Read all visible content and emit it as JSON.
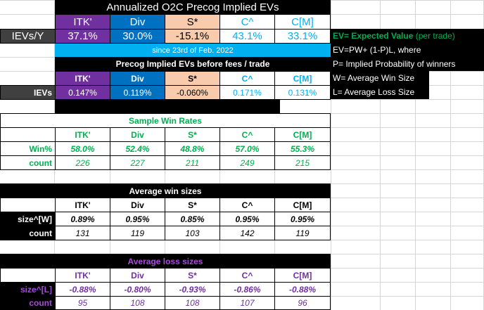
{
  "header": {
    "title": "Annualized O2C Precog Implied EVs",
    "row_label": "IEVs/Y",
    "since": "since 23rd of Feb. 2022"
  },
  "columns": [
    "ITK'",
    "Div",
    "S*",
    "C^",
    "C[M]"
  ],
  "annualized": [
    "37.1%",
    "30.0%",
    "-15.1%",
    "43.1%",
    "33.1%"
  ],
  "precog": {
    "title": "Precog Implied EVs before fees / trade",
    "row_label": "IEVs",
    "values": [
      "0.147%",
      "0.119%",
      "-0.060%",
      "0.171%",
      "0.131%"
    ]
  },
  "legend": {
    "ev_label": "EV= Expected Value",
    "ev_note": "(per trade)",
    "formula": "EV=PW+ (1-P)L, where",
    "p_def": "P= Implied Probability of winners",
    "w_def": "W= Average Win Size",
    "l_def": "L= Average Loss Size"
  },
  "win_rates": {
    "title": "Sample Win Rates",
    "row1_label": "Win%",
    "row1": [
      "58.0%",
      "52.4%",
      "48.8%",
      "57.0%",
      "55.3%"
    ],
    "row2_label": "count",
    "row2": [
      "226",
      "227",
      "211",
      "249",
      "215"
    ]
  },
  "win_sizes": {
    "title": "Average win sizes",
    "row1_label": "size^[W]",
    "row1": [
      "0.89%",
      "0.95%",
      "0.85%",
      "0.95%",
      "0.95%"
    ],
    "row2_label": "count",
    "row2": [
      "131",
      "119",
      "103",
      "142",
      "119"
    ]
  },
  "loss_sizes": {
    "title": "Average loss sizes",
    "row1_label": "size^[L]",
    "row1": [
      "-0.88%",
      "-0.80%",
      "-0.93%",
      "-0.86%",
      "-0.88%"
    ],
    "row2_label": "count",
    "row2": [
      "95",
      "108",
      "108",
      "107",
      "96"
    ]
  },
  "colors": {
    "purple": "#7030a0",
    "blue": "#0070c0",
    "peach": "#f8cbad",
    "cyan": "#00b0f0",
    "green": "#00b050"
  }
}
